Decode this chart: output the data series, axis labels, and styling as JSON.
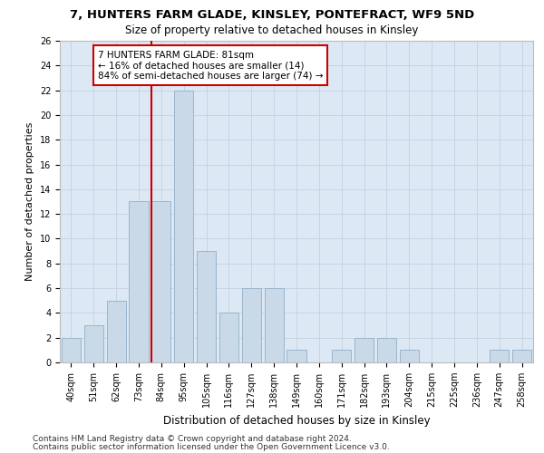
{
  "title1": "7, HUNTERS FARM GLADE, KINSLEY, PONTEFRACT, WF9 5ND",
  "title2": "Size of property relative to detached houses in Kinsley",
  "xlabel": "Distribution of detached houses by size in Kinsley",
  "ylabel": "Number of detached properties",
  "categories": [
    "40sqm",
    "51sqm",
    "62sqm",
    "73sqm",
    "84sqm",
    "95sqm",
    "105sqm",
    "116sqm",
    "127sqm",
    "138sqm",
    "149sqm",
    "160sqm",
    "171sqm",
    "182sqm",
    "193sqm",
    "204sqm",
    "215sqm",
    "225sqm",
    "236sqm",
    "247sqm",
    "258sqm"
  ],
  "values": [
    2,
    3,
    5,
    13,
    13,
    22,
    9,
    4,
    6,
    6,
    1,
    0,
    1,
    2,
    2,
    1,
    0,
    0,
    0,
    1,
    1
  ],
  "bar_color": "#c9d9e8",
  "bar_edge_color": "#9ab5cc",
  "vline_color": "#cc0000",
  "annotation_text": "7 HUNTERS FARM GLADE: 81sqm\n← 16% of detached houses are smaller (14)\n84% of semi-detached houses are larger (74) →",
  "annotation_box_color": "#ffffff",
  "annotation_box_edge": "#cc0000",
  "ylim": [
    0,
    26
  ],
  "yticks": [
    0,
    2,
    4,
    6,
    8,
    10,
    12,
    14,
    16,
    18,
    20,
    22,
    24,
    26
  ],
  "footer1": "Contains HM Land Registry data © Crown copyright and database right 2024.",
  "footer2": "Contains public sector information licensed under the Open Government Licence v3.0.",
  "grid_color": "#c8d4e4",
  "background_color": "#dce8f4",
  "title1_fontsize": 9.5,
  "title2_fontsize": 8.5,
  "annotation_fontsize": 7.5,
  "tick_fontsize": 7,
  "ylabel_fontsize": 8,
  "xlabel_fontsize": 8.5,
  "footer_fontsize": 6.5
}
